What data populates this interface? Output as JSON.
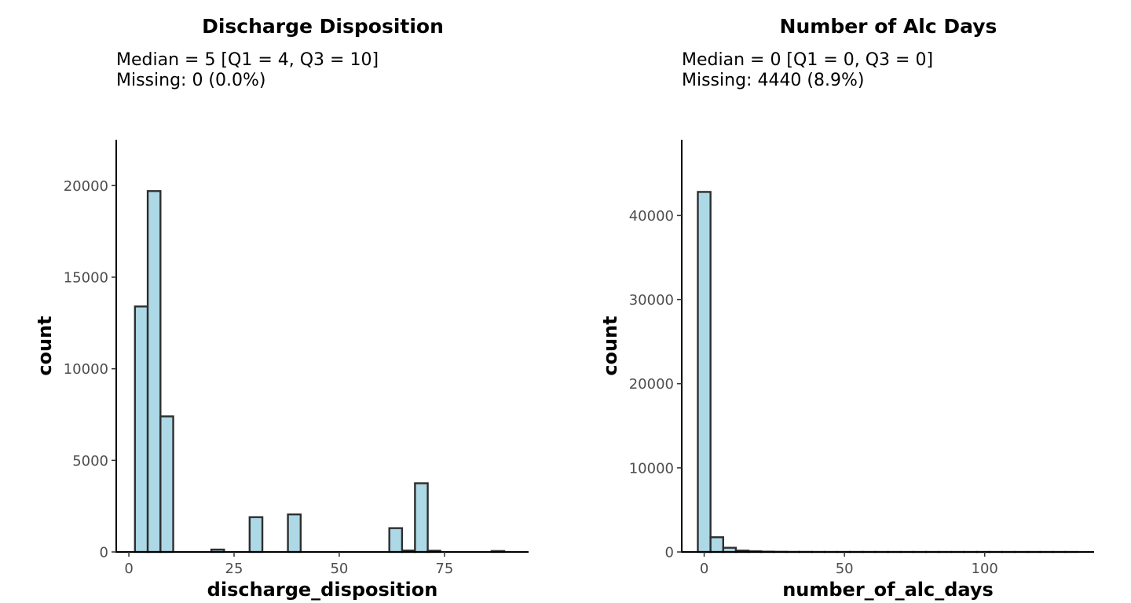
{
  "chart_data": [
    {
      "type": "bar",
      "title": "Discharge Disposition",
      "subtitle_lines": [
        "Median = 5 [Q1 = 4, Q3 = 10]",
        "Missing: 0 (0.0%)"
      ],
      "xlabel": "discharge_disposition",
      "ylabel": "count",
      "xlim": [
        -3,
        95
      ],
      "ylim": [
        0,
        22500
      ],
      "x_ticks": [
        0,
        25,
        50,
        75
      ],
      "y_ticks": [
        0,
        5000,
        10000,
        15000,
        20000
      ],
      "bin_width": 3.03,
      "bins": [
        {
          "start": 1.45,
          "count": 13400
        },
        {
          "start": 4.48,
          "count": 19700
        },
        {
          "start": 7.51,
          "count": 7400
        },
        {
          "start": 19.6,
          "count": 130
        },
        {
          "start": 28.7,
          "count": 1900
        },
        {
          "start": 37.8,
          "count": 2050
        },
        {
          "start": 61.9,
          "count": 1300
        },
        {
          "start": 65.0,
          "count": 80
        },
        {
          "start": 68.0,
          "count": 3750
        },
        {
          "start": 71.0,
          "count": 70
        },
        {
          "start": 86.2,
          "count": 50
        }
      ],
      "grid": false
    },
    {
      "type": "bar",
      "title": "Number of Alc Days",
      "subtitle_lines": [
        "Median = 0 [Q1 = 0, Q3 = 0]",
        "Missing: 4440 (8.9%)"
      ],
      "xlabel": "number_of_alc_days",
      "ylabel": "count",
      "xlim": [
        -8,
        139
      ],
      "ylim": [
        0,
        49000
      ],
      "x_ticks": [
        0,
        50,
        100
      ],
      "y_ticks": [
        0,
        10000,
        20000,
        30000,
        40000
      ],
      "bin_width": 4.52,
      "bins": [
        {
          "start": -2.26,
          "count": 42800
        },
        {
          "start": 2.26,
          "count": 1750
        },
        {
          "start": 6.78,
          "count": 500
        },
        {
          "start": 11.3,
          "count": 170
        },
        {
          "start": 15.8,
          "count": 90
        },
        {
          "start": 20.3,
          "count": 40
        },
        {
          "start": 24.9,
          "count": 20
        },
        {
          "start": 29.4,
          "count": 10
        },
        {
          "start": 33.9,
          "count": 8
        },
        {
          "start": 38.4,
          "count": 5
        },
        {
          "start": 42.9,
          "count": 5
        },
        {
          "start": 47.5,
          "count": 3
        },
        {
          "start": 52.0,
          "count": 3
        },
        {
          "start": 56.5,
          "count": 2
        },
        {
          "start": 61.0,
          "count": 2
        },
        {
          "start": 65.5,
          "count": 2
        },
        {
          "start": 70.1,
          "count": 1
        },
        {
          "start": 74.6,
          "count": 1
        },
        {
          "start": 79.1,
          "count": 1
        },
        {
          "start": 83.6,
          "count": 1
        },
        {
          "start": 88.2,
          "count": 1
        },
        {
          "start": 92.7,
          "count": 1
        },
        {
          "start": 97.2,
          "count": 1
        },
        {
          "start": 101.7,
          "count": 1
        },
        {
          "start": 106.2,
          "count": 1
        },
        {
          "start": 110.8,
          "count": 1
        },
        {
          "start": 115.3,
          "count": 1
        },
        {
          "start": 119.8,
          "count": 1
        },
        {
          "start": 124.3,
          "count": 1
        },
        {
          "start": 128.8,
          "count": 1
        }
      ],
      "grid": false
    }
  ]
}
